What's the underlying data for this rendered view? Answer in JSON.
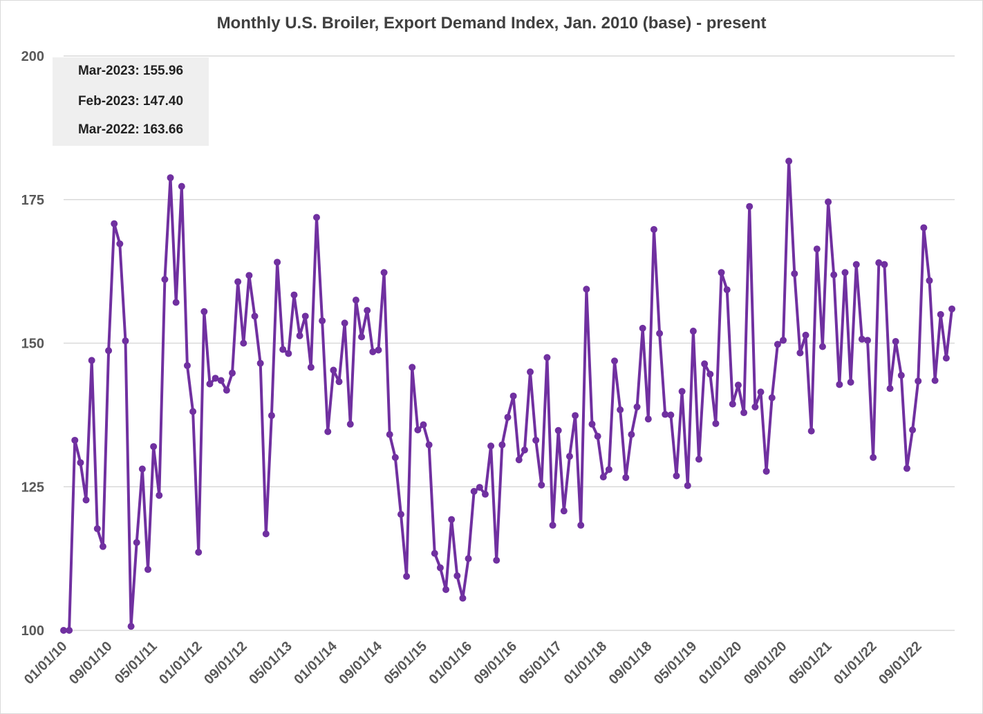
{
  "chart_data": {
    "type": "line",
    "title": "Monthly U.S. Broiler, Export Demand Index, Jan. 2010 (base) - present",
    "xlabel": "",
    "ylabel": "",
    "ylim": [
      100,
      200
    ],
    "yticks": [
      100,
      125,
      150,
      175,
      200
    ],
    "grid": true,
    "x_start": "01/01/10",
    "x_tick_labels": [
      "01/01/10",
      "09/01/10",
      "05/01/11",
      "01/01/12",
      "09/01/12",
      "05/01/13",
      "01/01/14",
      "09/01/14",
      "05/01/15",
      "01/01/16",
      "09/01/16",
      "05/01/17",
      "01/01/18",
      "09/01/18",
      "05/01/19",
      "01/01/20",
      "09/01/20",
      "05/01/21",
      "01/01/22",
      "09/01/22"
    ],
    "series_color": "#7030a0",
    "values": [
      100.0,
      100.0,
      133.1,
      129.2,
      122.7,
      147.0,
      117.7,
      114.6,
      148.7,
      170.8,
      167.3,
      150.4,
      100.7,
      115.3,
      128.1,
      110.6,
      132.0,
      123.5,
      161.1,
      178.8,
      157.1,
      177.3,
      146.1,
      138.1,
      113.6,
      155.5,
      142.9,
      143.9,
      143.5,
      141.8,
      144.8,
      160.7,
      150.0,
      161.8,
      154.7,
      146.5,
      116.8,
      137.4,
      164.1,
      148.9,
      148.2,
      158.4,
      151.3,
      154.7,
      145.8,
      171.9,
      153.9,
      134.6,
      145.3,
      143.3,
      153.5,
      135.9,
      157.5,
      151.1,
      155.7,
      148.5,
      148.8,
      162.3,
      134.1,
      130.1,
      120.2,
      109.4,
      145.8,
      134.9,
      135.8,
      132.3,
      113.4,
      110.9,
      107.1,
      119.3,
      109.5,
      105.6,
      112.5,
      124.2,
      124.9,
      123.7,
      132.1,
      112.2,
      132.3,
      137.1,
      140.8,
      129.7,
      131.4,
      145.0,
      133.1,
      125.3,
      147.5,
      118.3,
      134.8,
      120.8,
      130.3,
      137.4,
      118.3,
      159.4,
      135.9,
      133.8,
      126.7,
      128.0,
      146.9,
      138.4,
      126.6,
      134.1,
      138.9,
      152.6,
      136.8,
      169.8,
      151.7,
      137.6,
      137.5,
      126.9,
      141.6,
      125.2,
      152.1,
      129.8,
      146.4,
      144.6,
      136.0,
      162.3,
      159.3,
      139.4,
      142.7,
      137.9,
      173.8,
      138.9,
      141.5,
      127.7,
      140.5,
      149.8,
      150.5,
      181.7,
      162.1,
      148.3,
      151.4,
      134.7,
      166.4,
      149.4,
      174.6,
      161.9,
      142.8,
      162.3,
      143.2,
      163.7,
      150.7,
      150.5,
      130.1,
      164.0,
      163.7,
      142.1,
      150.3,
      144.4,
      128.2,
      134.9,
      143.4,
      170.1,
      160.9,
      143.5,
      155.0,
      147.4,
      155.96
    ]
  },
  "annotations": [
    "Mar-2023: 155.96",
    "Feb-2023: 147.40",
    "Mar-2022: 163.66"
  ]
}
